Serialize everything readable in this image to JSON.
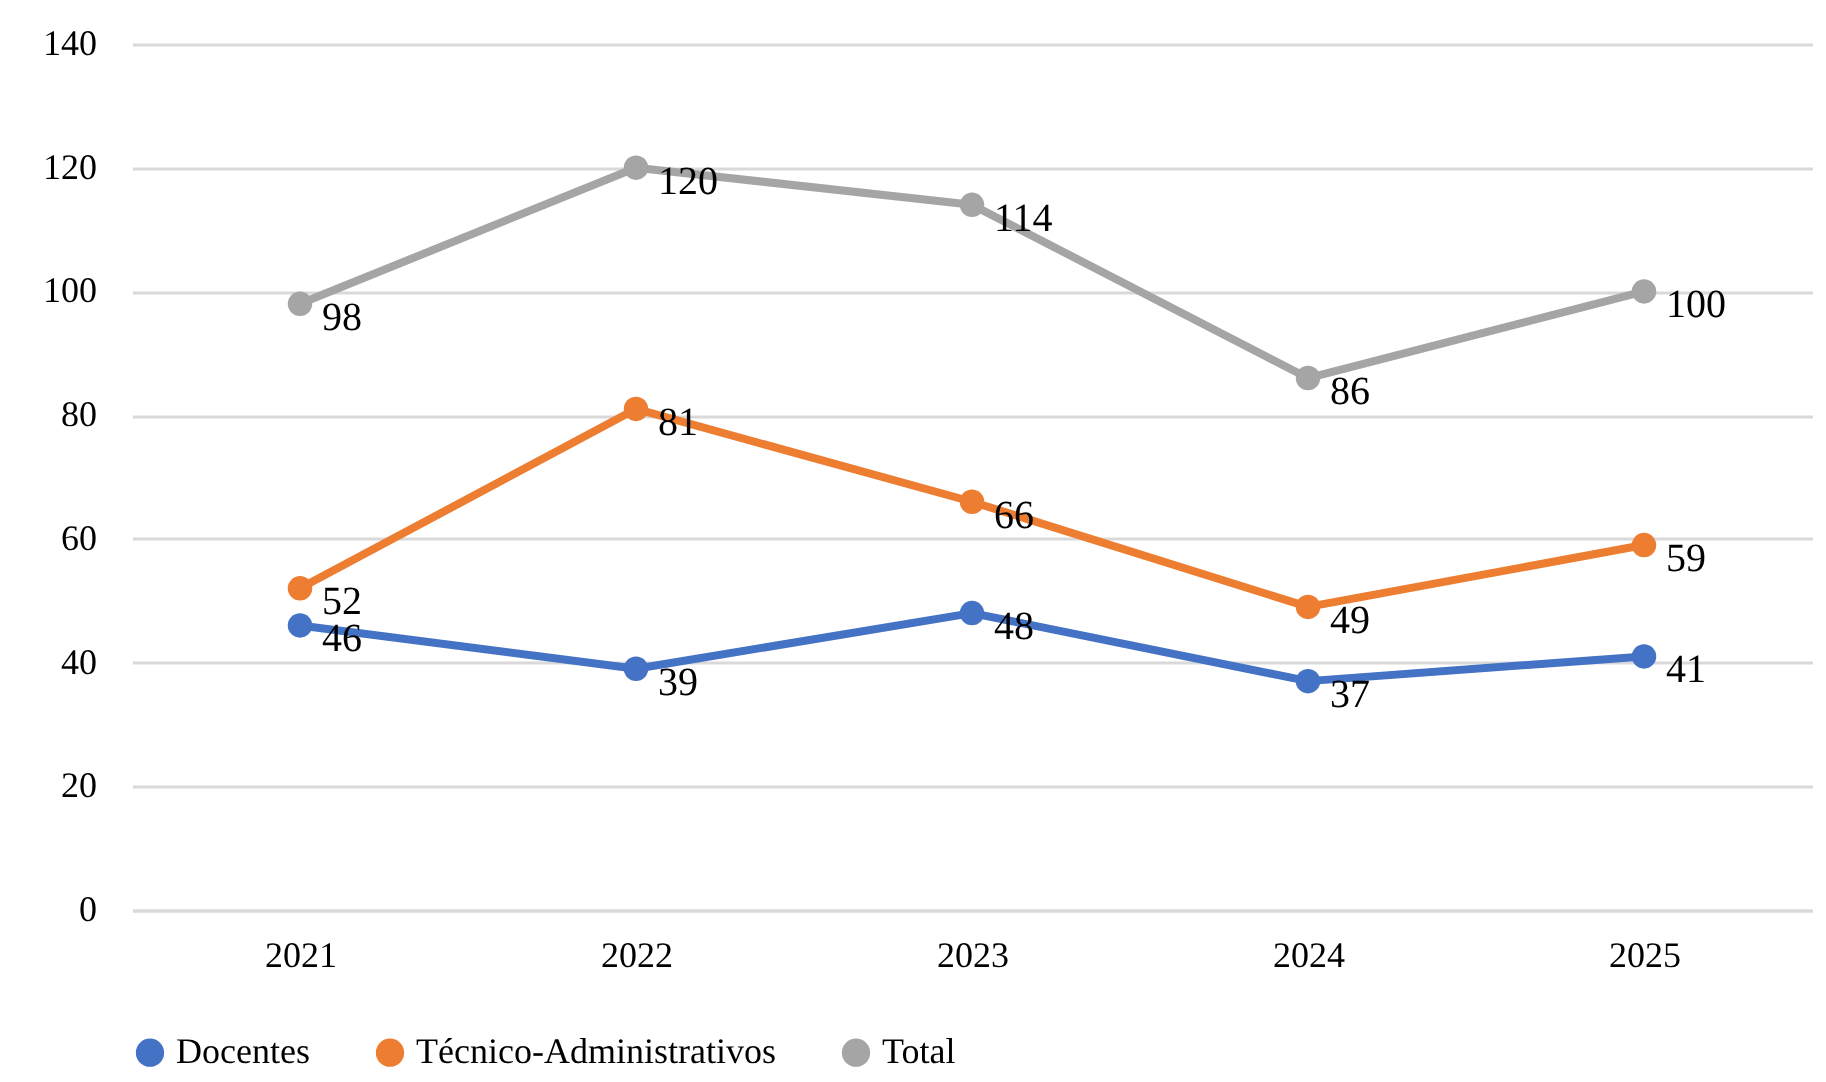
{
  "chart_data": {
    "type": "line",
    "categories": [
      "2021",
      "2022",
      "2023",
      "2024",
      "2025"
    ],
    "series": [
      {
        "name": "Docentes",
        "color": "#4472c4",
        "values": [
          46,
          39,
          48,
          37,
          41
        ]
      },
      {
        "name": "Técnico-Administrativos",
        "color": "#ed7d31",
        "values": [
          52,
          81,
          66,
          49,
          59
        ]
      },
      {
        "name": "Total",
        "color": "#a5a5a5",
        "values": [
          98,
          120,
          114,
          86,
          100
        ]
      }
    ],
    "ylim": [
      0,
      140
    ],
    "yticks": [
      0,
      20,
      40,
      60,
      80,
      100,
      120,
      140
    ],
    "grid": "y",
    "legend": "bottom",
    "marker": "circle",
    "line_style": "solid",
    "data_labels": true
  }
}
